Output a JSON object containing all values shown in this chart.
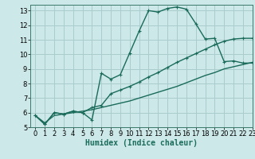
{
  "xlabel": "Humidex (Indice chaleur)",
  "background_color": "#cce8e8",
  "grid_color": "#aacccc",
  "line_color": "#1a6b5a",
  "xlim": [
    -0.5,
    23
  ],
  "ylim": [
    5,
    13.4
  ],
  "yticks": [
    5,
    6,
    7,
    8,
    9,
    10,
    11,
    12,
    13
  ],
  "xticks": [
    0,
    1,
    2,
    3,
    4,
    5,
    6,
    7,
    8,
    9,
    10,
    11,
    12,
    13,
    14,
    15,
    16,
    17,
    18,
    19,
    20,
    21,
    22,
    23
  ],
  "line1_x": [
    0,
    1,
    2,
    3,
    4,
    5,
    6,
    7,
    8,
    9,
    10,
    11,
    12,
    13,
    14,
    15,
    16,
    17,
    18,
    19,
    20,
    21,
    22,
    23
  ],
  "line1_y": [
    5.8,
    5.2,
    6.0,
    5.9,
    6.1,
    6.0,
    5.5,
    8.7,
    8.3,
    8.6,
    10.1,
    11.6,
    13.0,
    12.9,
    13.15,
    13.25,
    13.1,
    12.1,
    11.05,
    11.1,
    9.5,
    9.55,
    9.4,
    9.4
  ],
  "line2_x": [
    0,
    1,
    2,
    3,
    4,
    5,
    6,
    7,
    8,
    9,
    10,
    11,
    12,
    13,
    14,
    15,
    16,
    17,
    18,
    19,
    20,
    21,
    22,
    23
  ],
  "line2_y": [
    5.8,
    5.2,
    6.0,
    5.9,
    6.1,
    6.0,
    6.35,
    6.5,
    7.3,
    7.55,
    7.8,
    8.1,
    8.45,
    8.75,
    9.1,
    9.45,
    9.75,
    10.05,
    10.35,
    10.65,
    10.9,
    11.05,
    11.1,
    11.1
  ],
  "line3_x": [
    0,
    1,
    2,
    3,
    4,
    5,
    6,
    7,
    8,
    9,
    10,
    11,
    12,
    13,
    14,
    15,
    16,
    17,
    18,
    19,
    20,
    21,
    22,
    23
  ],
  "line3_y": [
    5.8,
    5.3,
    5.8,
    5.9,
    6.0,
    6.1,
    6.2,
    6.35,
    6.5,
    6.65,
    6.8,
    7.0,
    7.2,
    7.4,
    7.6,
    7.8,
    8.05,
    8.3,
    8.55,
    8.75,
    9.0,
    9.15,
    9.3,
    9.45
  ],
  "marker": "+",
  "markersize": 3.5,
  "linewidth": 1.0,
  "xlabel_fontsize": 7,
  "tick_fontsize": 6
}
